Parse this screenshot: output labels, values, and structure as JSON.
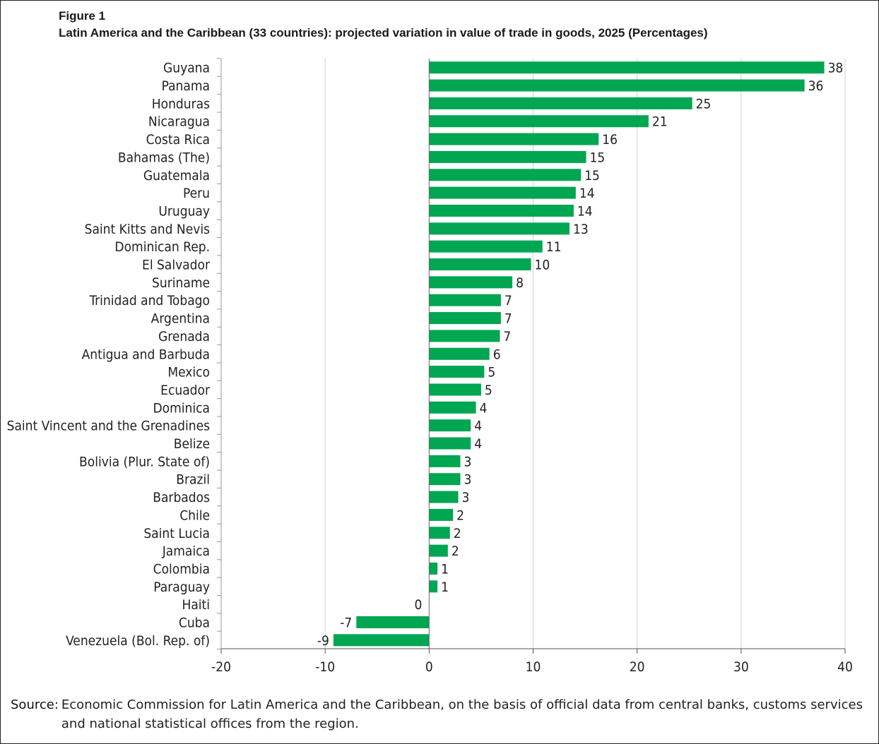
{
  "figure": {
    "label": "Figure 1",
    "title": "Latin America and the Caribbean (33 countries): projected variation in value of trade in goods, 2025 (Percentages)"
  },
  "chart_data": {
    "type": "bar",
    "orientation": "horizontal",
    "categories": [
      "Guyana",
      "Panama",
      "Honduras",
      "Nicaragua",
      "Costa Rica",
      "Bahamas (The)",
      "Guatemala",
      "Peru",
      "Uruguay",
      "Saint Kitts and Nevis",
      "Dominican Rep.",
      "El Salvador",
      "Suriname",
      "Trinidad and Tobago",
      "Argentina",
      "Grenada",
      "Antigua and Barbuda",
      "Mexico",
      "Ecuador",
      "Dominica",
      "Saint Vincent and the Grenadines",
      "Belize",
      "Bolivia (Plur. State of)",
      "Brazil",
      "Barbados",
      "Chile",
      "Saint Lucia",
      "Jamaica",
      "Colombia",
      "Paraguay",
      "Haiti",
      "Cuba",
      "Venezuela (Bol. Rep. of)"
    ],
    "values": [
      38,
      36,
      25,
      21,
      16,
      15,
      15,
      14,
      14,
      13,
      11,
      10,
      8,
      7,
      7,
      7,
      6,
      5,
      5,
      4,
      4,
      4,
      3,
      3,
      3,
      2,
      2,
      2,
      1,
      1,
      0,
      -7,
      -9
    ],
    "bar_lengths": [
      38.0,
      36.1,
      25.3,
      21.1,
      16.3,
      15.1,
      14.6,
      14.1,
      13.9,
      13.5,
      10.9,
      9.8,
      8.0,
      6.9,
      6.9,
      6.8,
      5.8,
      5.3,
      5.0,
      4.5,
      4.0,
      4.0,
      3.0,
      3.0,
      2.8,
      2.3,
      2.0,
      1.8,
      0.8,
      0.8,
      0.0,
      -7.0,
      -9.2
    ],
    "value_labels": [
      "38",
      "36",
      "25",
      "21",
      "16",
      "15",
      "15",
      "14",
      "14",
      "13",
      "11",
      "10",
      "8",
      "7",
      "7",
      "7",
      "6",
      "5",
      "5",
      "4",
      "4",
      "4",
      "3",
      "3",
      "3",
      "2",
      "2",
      "2",
      "1",
      "1",
      "0",
      "-7",
      "-9"
    ],
    "xlim": [
      -20,
      40
    ],
    "xticks": [
      -20,
      -10,
      0,
      10,
      20,
      30,
      40
    ],
    "xtick_labels": [
      "-20",
      "-10",
      "0",
      "10",
      "20",
      "30",
      "40"
    ],
    "grid": true,
    "xlabel": "",
    "ylabel": "",
    "bar_color": "#00a651"
  },
  "source": {
    "label": "Source",
    "separator": ":",
    "text": "Economic Commission for Latin America and the Caribbean, on the basis of official data from central banks, customs services and national statistical offices from the region."
  }
}
